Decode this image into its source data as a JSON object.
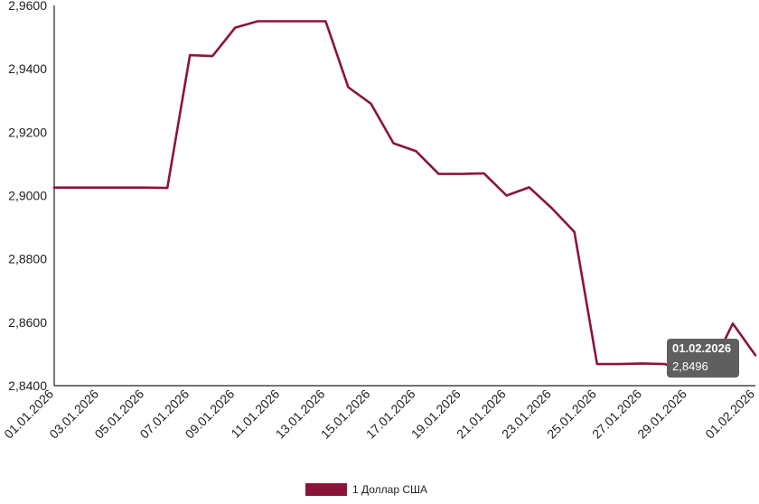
{
  "chart_data": {
    "type": "line",
    "x": [
      "01.01.2026",
      "02.01.2026",
      "03.01.2026",
      "04.01.2026",
      "05.01.2026",
      "06.01.2026",
      "07.01.2026",
      "08.01.2026",
      "09.01.2026",
      "10.01.2026",
      "11.01.2026",
      "12.01.2026",
      "13.01.2026",
      "14.01.2026",
      "15.01.2026",
      "16.01.2026",
      "17.01.2026",
      "18.01.2026",
      "19.01.2026",
      "20.01.2026",
      "21.01.2026",
      "22.01.2026",
      "23.01.2026",
      "24.01.2026",
      "25.01.2026",
      "26.01.2026",
      "27.01.2026",
      "28.01.2026",
      "29.01.2026",
      "30.01.2026",
      "31.01.2026",
      "01.02.2026"
    ],
    "x_tick_labels": [
      "01.01.2026",
      "03.01.2026",
      "05.01.2026",
      "07.01.2026",
      "09.01.2026",
      "11.01.2026",
      "13.01.2026",
      "15.01.2026",
      "17.01.2026",
      "19.01.2026",
      "21.01.2026",
      "23.01.2026",
      "25.01.2026",
      "27.01.2026",
      "29.01.2026",
      "01.02.2026"
    ],
    "series": [
      {
        "name": "1 Доллар США",
        "color": "#8b1538",
        "values": [
          2.9025,
          2.9025,
          2.9025,
          2.9025,
          2.9025,
          2.9024,
          2.9443,
          2.944,
          2.953,
          2.955,
          2.955,
          2.955,
          2.955,
          2.9342,
          2.929,
          2.9165,
          2.914,
          2.9068,
          2.9068,
          2.907,
          2.9,
          2.9026,
          2.896,
          2.8885,
          2.8468,
          2.8468,
          2.847,
          2.8468,
          2.844,
          2.845,
          2.8596,
          2.8496
        ]
      }
    ],
    "y_tick_labels": [
      "2,9600",
      "2,9400",
      "2,9200",
      "2,9000",
      "2,8800",
      "2,8600",
      "2,8400"
    ],
    "y_ticks": [
      2.96,
      2.94,
      2.92,
      2.9,
      2.88,
      2.86,
      2.84
    ],
    "ylim": [
      2.84,
      2.96
    ],
    "grid": false,
    "legend": "bottom-center",
    "tooltip": {
      "date": "01.02.2026",
      "value": "2,8496"
    }
  }
}
